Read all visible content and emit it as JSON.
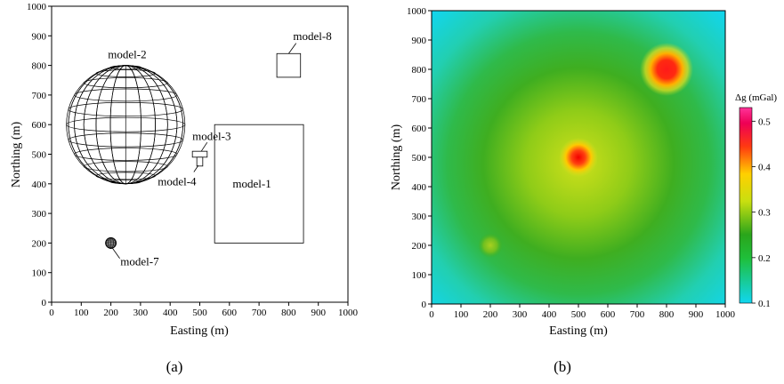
{
  "chart_data": [
    {
      "type": "diagram",
      "panel_label": "(a)",
      "xlabel": "Easting (m)",
      "ylabel": "Northing (m)",
      "xlim": [
        0,
        1000
      ],
      "ylim": [
        0,
        1000
      ],
      "xticks": [
        0,
        100,
        200,
        300,
        400,
        500,
        600,
        700,
        800,
        900,
        1000
      ],
      "yticks": [
        0,
        100,
        200,
        300,
        400,
        500,
        600,
        700,
        800,
        900,
        1000
      ],
      "models": [
        {
          "label": "model-1",
          "shape": "rectangle",
          "x": [
            550,
            850
          ],
          "y": [
            200,
            600
          ]
        },
        {
          "label": "model-2",
          "shape": "sphere",
          "center": [
            250,
            600
          ],
          "radius": 200
        },
        {
          "label": "model-3",
          "shape": "cap",
          "x": [
            475,
            525
          ],
          "y": [
            490,
            510
          ]
        },
        {
          "label": "model-4",
          "shape": "stem",
          "x": [
            490,
            510
          ],
          "y": [
            460,
            490
          ]
        },
        {
          "label": "model-7",
          "shape": "sphere",
          "center": [
            200,
            200
          ],
          "radius": 18
        },
        {
          "label": "model-8",
          "shape": "rectangle",
          "x": [
            760,
            840
          ],
          "y": [
            760,
            840
          ]
        }
      ]
    },
    {
      "type": "heatmap",
      "panel_label": "(b)",
      "xlabel": "Easting (m)",
      "ylabel": "Northing (m)",
      "xlim": [
        0,
        1000
      ],
      "ylim": [
        0,
        1000
      ],
      "xticks": [
        0,
        100,
        200,
        300,
        400,
        500,
        600,
        700,
        800,
        900,
        1000
      ],
      "yticks": [
        0,
        100,
        200,
        300,
        400,
        500,
        600,
        700,
        800,
        900,
        1000
      ],
      "colorbar": {
        "label": "Δg (mGal)",
        "range": [
          0.1,
          0.53
        ],
        "ticks": [
          0.1,
          0.2,
          0.3,
          0.4,
          0.5
        ],
        "tick_labels": [
          "0.1",
          "0.2",
          "0.3",
          "0.4",
          "0.5"
        ],
        "colors": [
          "#11d6f0",
          "#1fbf3a",
          "#2aa51b",
          "#c8df10",
          "#ffd000",
          "#ff3a10",
          "#ee0055",
          "#ff3399"
        ]
      },
      "anomalies": [
        {
          "x": 800,
          "y": 800,
          "peak": 0.53
        },
        {
          "x": 500,
          "y": 500,
          "peak": 0.45
        },
        {
          "x": 200,
          "y": 200,
          "peak": 0.3
        }
      ]
    }
  ]
}
